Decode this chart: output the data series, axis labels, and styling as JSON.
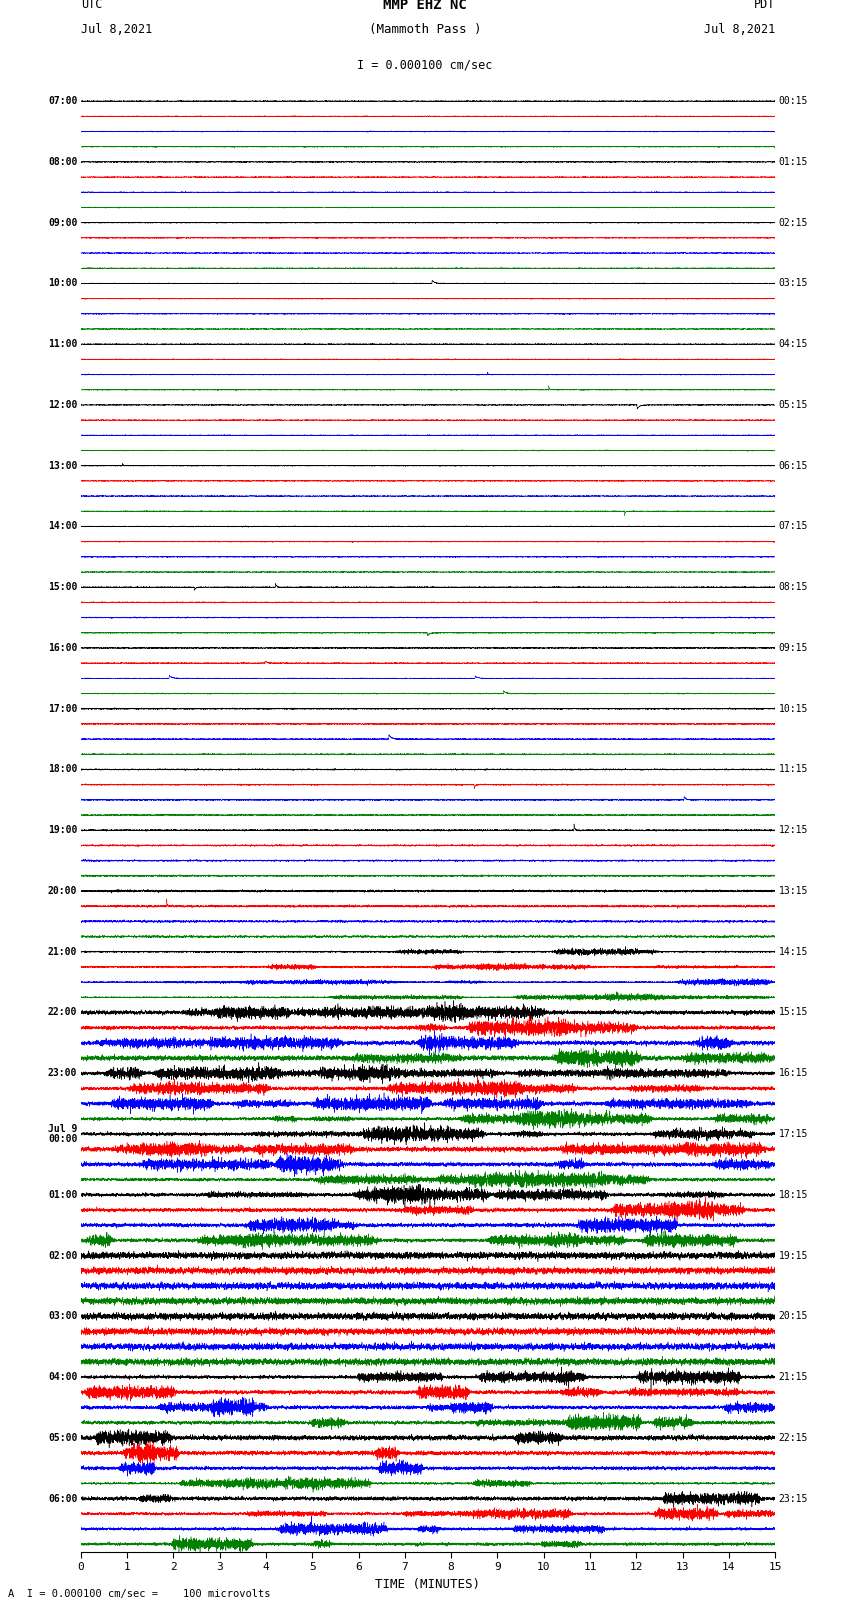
{
  "title_line1": "MMP EHZ NC",
  "title_line2": "(Mammoth Pass )",
  "scale_text": "I = 0.000100 cm/sec",
  "bottom_text": "A  I = 0.000100 cm/sec =    100 microvolts",
  "utc_label": "UTC",
  "utc_date": "Jul 8,2021",
  "pdt_label": "PDT",
  "pdt_date": "Jul 8,2021",
  "xlabel": "TIME (MINUTES)",
  "xmin": 0,
  "xmax": 15,
  "xticks": [
    0,
    1,
    2,
    3,
    4,
    5,
    6,
    7,
    8,
    9,
    10,
    11,
    12,
    13,
    14,
    15
  ],
  "num_traces": 96,
  "trace_colors_cycle": [
    "black",
    "red",
    "blue",
    "green"
  ],
  "bg_color": "white",
  "trace_lw": 0.35,
  "left_hour_labels": {
    "0": "07:00",
    "4": "08:00",
    "8": "09:00",
    "12": "10:00",
    "16": "11:00",
    "20": "12:00",
    "24": "13:00",
    "28": "14:00",
    "32": "15:00",
    "36": "16:00",
    "40": "17:00",
    "44": "18:00",
    "48": "19:00",
    "52": "20:00",
    "56": "21:00",
    "60": "22:00",
    "64": "23:00",
    "68": "Jul 9\n00:00",
    "72": "01:00",
    "76": "02:00",
    "80": "03:00",
    "84": "04:00",
    "88": "05:00",
    "92": "06:00"
  },
  "right_hour_labels": {
    "0": "00:15",
    "4": "01:15",
    "8": "02:15",
    "12": "03:15",
    "16": "04:15",
    "20": "05:15",
    "24": "06:15",
    "28": "07:15",
    "32": "08:15",
    "36": "09:15",
    "40": "10:15",
    "44": "11:15",
    "48": "12:15",
    "52": "13:15",
    "56": "14:15",
    "60": "15:15",
    "64": "16:15",
    "68": "17:15",
    "72": "18:15",
    "76": "19:15",
    "80": "20:15",
    "84": "21:15",
    "88": "22:15",
    "92": "23:15"
  }
}
